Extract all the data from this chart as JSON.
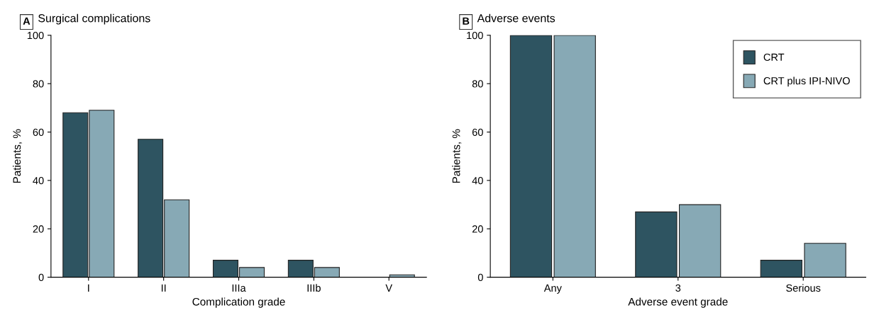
{
  "chart_data": [
    {
      "type": "bar",
      "title": "Surgical complications",
      "annotations": [
        "A"
      ],
      "xlabel": "Complication grade",
      "ylabel": "Patients, %",
      "categories": [
        "I",
        "II",
        "IIIa",
        "IIIb",
        "V"
      ],
      "series": [
        {
          "color": "#2e5461",
          "values": [
            68,
            57,
            7,
            7,
            null
          ]
        },
        {
          "color": "#87a9b5",
          "values": [
            69,
            32,
            4,
            4,
            1
          ]
        }
      ],
      "ylim": [
        0,
        100
      ],
      "yticks": [
        0,
        20,
        40,
        60,
        80,
        100
      ],
      "grid": false,
      "legend": false
    },
    {
      "type": "bar",
      "title": "Adverse events",
      "annotations": [
        "B"
      ],
      "xlabel": "Adverse event grade",
      "ylabel": "Patients, %",
      "categories": [
        "Any",
        "3",
        "Serious"
      ],
      "series": [
        {
          "name": "CRT",
          "color": "#2e5461",
          "values": [
            100,
            27,
            7
          ]
        },
        {
          "name": "CRT plus IPI-NIVO",
          "color": "#87a9b5",
          "values": [
            100,
            30,
            14
          ]
        }
      ],
      "ylim": [
        0,
        100
      ],
      "yticks": [
        0,
        20,
        40,
        60,
        80,
        100
      ],
      "grid": false,
      "legend": "top right"
    }
  ]
}
